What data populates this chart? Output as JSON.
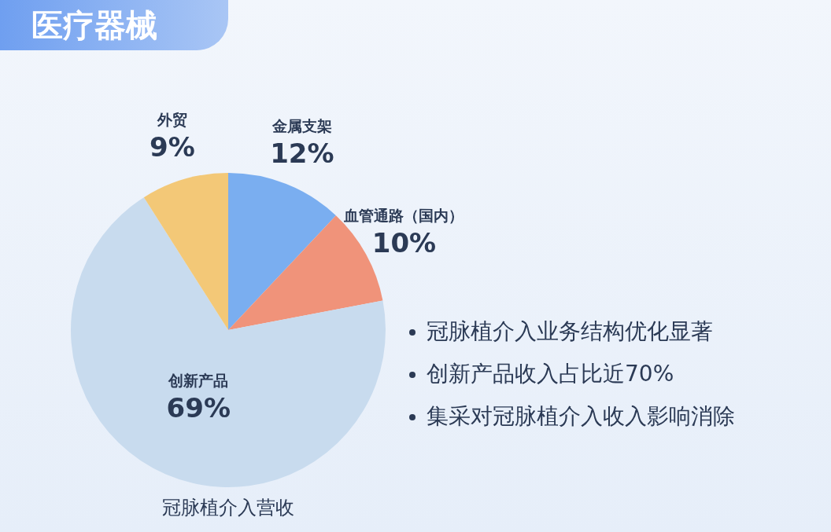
{
  "chart_data": {
    "type": "pie",
    "title": "医疗器械",
    "xlabel": "冠脉植介入营收",
    "categories": [
      "金属支架",
      "血管通路（国内）",
      "创新产品",
      "外贸"
    ],
    "values": [
      12,
      10,
      69,
      9
    ],
    "value_labels": [
      "12%",
      "10%",
      "69%",
      "9%"
    ],
    "colors": [
      "#7aaef0",
      "#f0937a",
      "#c8dbee",
      "#f3c877"
    ],
    "annotations": [
      "冠脉植介入业务结构优化显著",
      "创新产品收入占比近70%",
      "集采对冠脉植介入收入影响消除"
    ]
  }
}
